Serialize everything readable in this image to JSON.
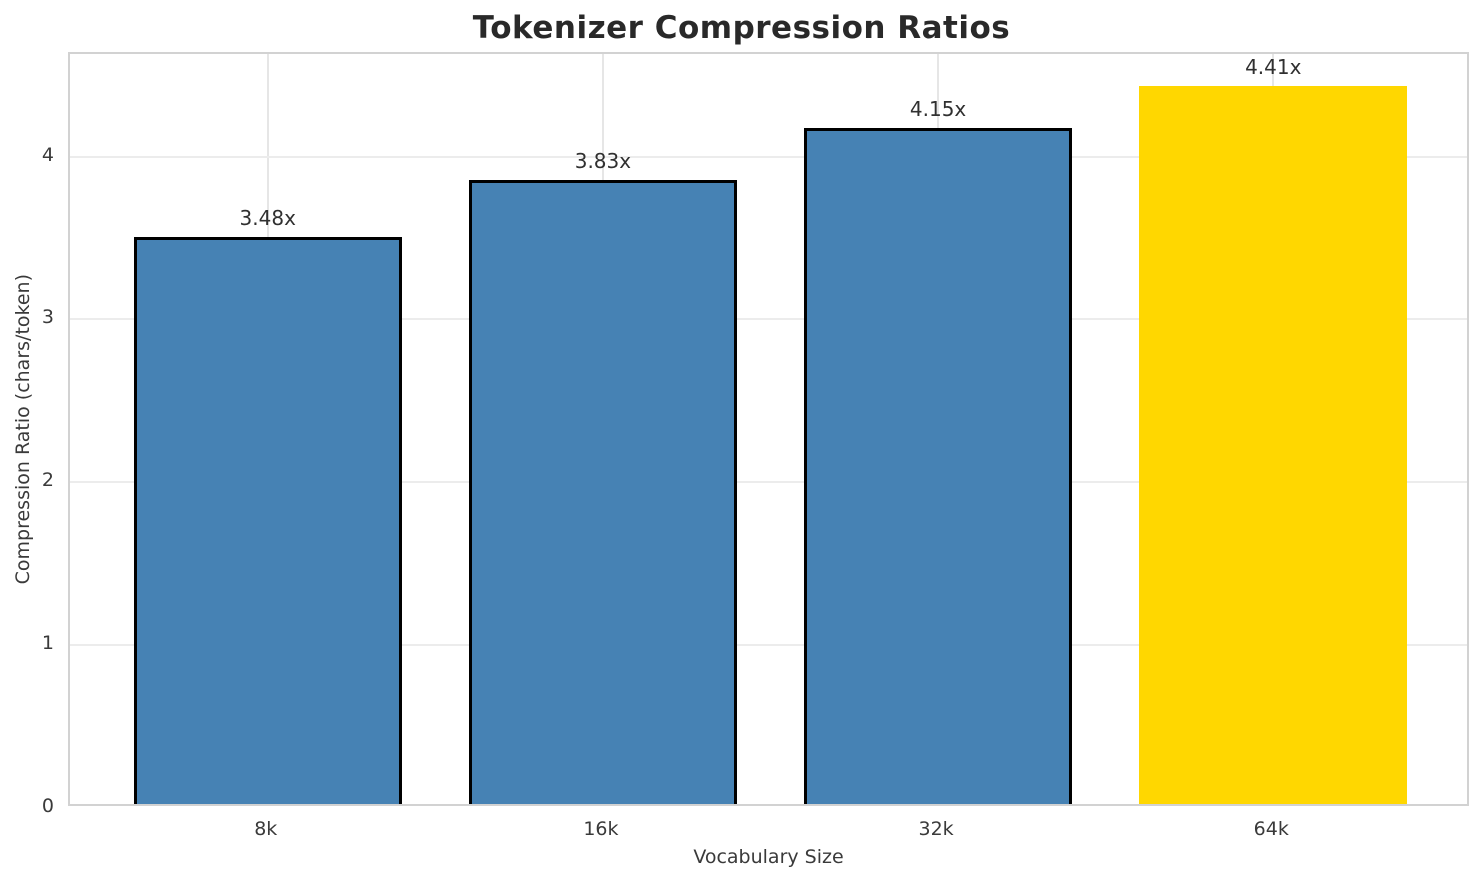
{
  "chart_data": {
    "type": "bar",
    "title": "Tokenizer Compression Ratios",
    "xlabel": "Vocabulary Size",
    "ylabel": "Compression Ratio (chars/token)",
    "categories": [
      "8k",
      "16k",
      "32k",
      "64k"
    ],
    "values": [
      3.48,
      3.83,
      4.15,
      4.41
    ],
    "value_labels": [
      "3.48x",
      "3.83x",
      "4.15x",
      "4.41x"
    ],
    "bar_colors": [
      "#4682B4",
      "#4682B4",
      "#4682B4",
      "#FFD700"
    ],
    "bar_edge_colors": [
      "#000000",
      "#000000",
      "#000000",
      "none"
    ],
    "yticks": [
      0,
      1,
      2,
      3,
      4
    ],
    "ylim": [
      0,
      4.63
    ],
    "grid": true,
    "legend": "none"
  }
}
